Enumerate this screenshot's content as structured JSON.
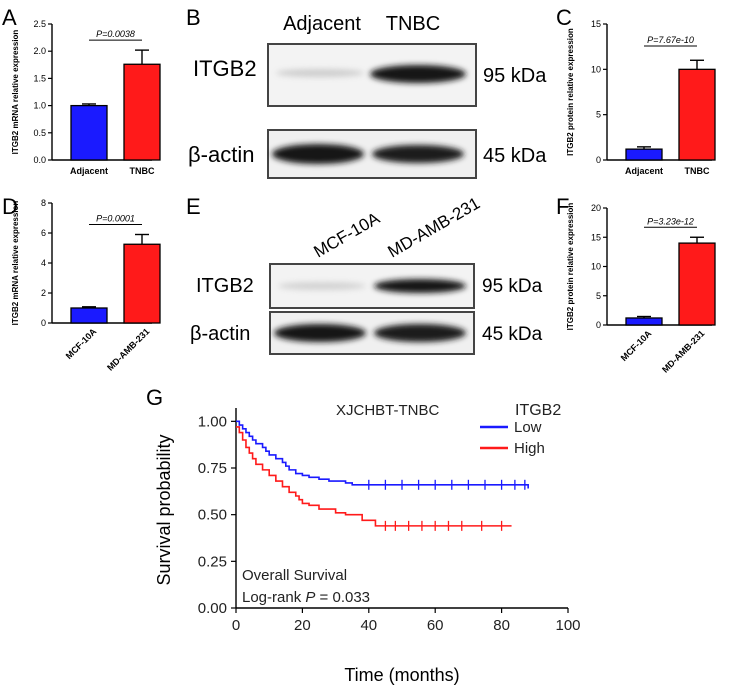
{
  "panels": {
    "A": {
      "letter": "A"
    },
    "B": {
      "letter": "B"
    },
    "C": {
      "letter": "C"
    },
    "D": {
      "letter": "D"
    },
    "E": {
      "letter": "E"
    },
    "F": {
      "letter": "F"
    },
    "G": {
      "letter": "G"
    }
  },
  "blots": {
    "B": {
      "lanes": [
        "Adjacent",
        "TNBC"
      ],
      "rows": [
        {
          "protein": "ITGB2",
          "size": "95 kDa",
          "intensity": [
            0.15,
            0.95
          ]
        },
        {
          "protein": "β-actin",
          "size": "45 kDa",
          "intensity": [
            0.95,
            0.9
          ]
        }
      ]
    },
    "E": {
      "lanes": [
        "MCF-10A",
        "MD-AMB-231"
      ],
      "rows": [
        {
          "protein": "ITGB2",
          "size": "95 kDa",
          "intensity": [
            0.12,
            0.9
          ]
        },
        {
          "protein": "β-actin",
          "size": "45 kDa",
          "intensity": [
            0.95,
            0.92
          ]
        }
      ]
    }
  },
  "chart_data": [
    {
      "panel": "A",
      "type": "bar",
      "categories": [
        "Adjacent",
        "TNBC"
      ],
      "values": [
        1.0,
        1.76
      ],
      "errors": [
        0.03,
        0.26
      ],
      "colors": [
        "#1a1aff",
        "#ff1a1a"
      ],
      "ylabel": "ITGB2 mRNA relative expression",
      "ylim": [
        0,
        2.5
      ],
      "yticks": [
        "0.0",
        "0.5",
        "1.0",
        "1.5",
        "2.0",
        "2.5"
      ],
      "pvalue": "P=0.0038"
    },
    {
      "panel": "C",
      "type": "bar",
      "categories": [
        "Adjacent",
        "TNBC"
      ],
      "values": [
        1.2,
        10.0
      ],
      "errors": [
        0.25,
        1.0
      ],
      "colors": [
        "#1a1aff",
        "#ff1a1a"
      ],
      "ylabel": "ITGB2 protein relative expression",
      "ylim": [
        0,
        15
      ],
      "yticks": [
        "0",
        "5",
        "10",
        "15"
      ],
      "pvalue": "P=7.67e-10"
    },
    {
      "panel": "D",
      "type": "bar",
      "categories": [
        "MCF-10A",
        "MD-AMB-231"
      ],
      "values": [
        1.0,
        5.25
      ],
      "errors": [
        0.08,
        0.65
      ],
      "colors": [
        "#1a1aff",
        "#ff1a1a"
      ],
      "ylabel": "ITGB2 mRNA relative expression",
      "ylim": [
        0,
        8
      ],
      "yticks": [
        "0",
        "2",
        "4",
        "6",
        "8"
      ],
      "pvalue": "P=0.0001"
    },
    {
      "panel": "F",
      "type": "bar",
      "categories": [
        "MCF-10A",
        "MD-AMB-231"
      ],
      "values": [
        1.2,
        14.0
      ],
      "errors": [
        0.25,
        1.0
      ],
      "colors": [
        "#1a1aff",
        "#ff1a1a"
      ],
      "ylabel": "ITGB2 protein relative expression",
      "ylim": [
        0,
        20
      ],
      "yticks": [
        "0",
        "5",
        "10",
        "15",
        "20"
      ],
      "pvalue": "P=3.23e-12"
    },
    {
      "panel": "G",
      "type": "line",
      "title": "XJCHBT-TNBC",
      "xlabel": "Time (months)",
      "ylabel": "Survival probability",
      "xlim": [
        0,
        100
      ],
      "ylim": [
        0,
        1.05
      ],
      "xticks": [
        "0",
        "20",
        "40",
        "60",
        "80",
        "100"
      ],
      "yticks": [
        "0.00",
        "0.25",
        "0.50",
        "0.75",
        "1.00"
      ],
      "legend_title": "ITGB2",
      "annotation_line1": "Overall Survival",
      "annotation_line2_prefix": "Log-rank ",
      "annotation_line2_p": "P",
      "annotation_line2_value": " =  0.033",
      "series": [
        {
          "name": "Low",
          "color": "#1a1aff",
          "x": [
            0,
            1,
            2,
            3,
            4,
            5,
            6,
            8,
            9,
            10,
            12,
            14,
            15,
            16,
            18,
            20,
            22,
            25,
            28,
            33,
            35,
            88
          ],
          "y": [
            1.0,
            0.98,
            0.96,
            0.94,
            0.92,
            0.9,
            0.88,
            0.86,
            0.84,
            0.82,
            0.8,
            0.78,
            0.76,
            0.74,
            0.72,
            0.71,
            0.7,
            0.69,
            0.68,
            0.67,
            0.66,
            0.64
          ],
          "censor": [
            40,
            45,
            50,
            55,
            60,
            65,
            70,
            75,
            80,
            84,
            87
          ]
        },
        {
          "name": "High",
          "color": "#ff1a1a",
          "x": [
            0,
            1,
            2,
            3,
            4,
            5,
            6,
            8,
            10,
            12,
            14,
            16,
            18,
            19,
            20,
            22,
            25,
            30,
            33,
            38,
            42,
            83
          ],
          "y": [
            0.97,
            0.94,
            0.9,
            0.86,
            0.83,
            0.8,
            0.77,
            0.74,
            0.71,
            0.68,
            0.65,
            0.62,
            0.6,
            0.58,
            0.56,
            0.55,
            0.53,
            0.51,
            0.5,
            0.47,
            0.44,
            0.44
          ],
          "censor": [
            45,
            48,
            52,
            56,
            60,
            64,
            68,
            74,
            80
          ]
        }
      ]
    }
  ]
}
